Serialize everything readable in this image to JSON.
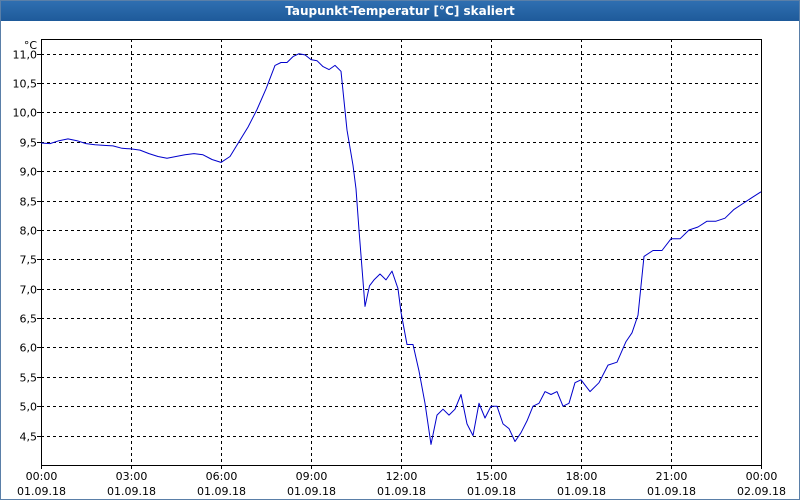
{
  "window": {
    "title": "Taupunkt-Temperatur [°C] skaliert"
  },
  "chart_data": {
    "type": "line",
    "title": "Taupunkt-Temperatur [°C] skaliert",
    "ylabel": "°C",
    "xlabel": "",
    "ylim": [
      4.0,
      11.25
    ],
    "xlim_hours": [
      0,
      24
    ],
    "grid": true,
    "y_ticks": [
      {
        "value": 4.5,
        "label": "4,5"
      },
      {
        "value": 5.0,
        "label": "5,0"
      },
      {
        "value": 5.5,
        "label": "5,5"
      },
      {
        "value": 6.0,
        "label": "6,0"
      },
      {
        "value": 6.5,
        "label": "6,5"
      },
      {
        "value": 7.0,
        "label": "7,0"
      },
      {
        "value": 7.5,
        "label": "7,5"
      },
      {
        "value": 8.0,
        "label": "8,0"
      },
      {
        "value": 8.5,
        "label": "8,5"
      },
      {
        "value": 9.0,
        "label": "9,0"
      },
      {
        "value": 9.5,
        "label": "9,5"
      },
      {
        "value": 10.0,
        "label": "10,0"
      },
      {
        "value": 10.5,
        "label": "10,5"
      },
      {
        "value": 11.0,
        "label": "11,0"
      }
    ],
    "x_ticks": [
      {
        "hour": 0,
        "time": "00:00",
        "date": "01.09.18"
      },
      {
        "hour": 3,
        "time": "03:00",
        "date": "01.09.18"
      },
      {
        "hour": 6,
        "time": "06:00",
        "date": "01.09.18"
      },
      {
        "hour": 9,
        "time": "09:00",
        "date": "01.09.18"
      },
      {
        "hour": 12,
        "time": "12:00",
        "date": "01.09.18"
      },
      {
        "hour": 15,
        "time": "15:00",
        "date": "01.09.18"
      },
      {
        "hour": 18,
        "time": "18:00",
        "date": "01.09.18"
      },
      {
        "hour": 21,
        "time": "21:00",
        "date": "01.09.18"
      },
      {
        "hour": 24,
        "time": "00:00",
        "date": "02.09.18"
      }
    ],
    "series": [
      {
        "color": "#0000cc",
        "x_hours": [
          0,
          0.3,
          0.6,
          0.9,
          1.2,
          1.5,
          1.8,
          2.1,
          2.4,
          2.7,
          3.0,
          3.3,
          3.6,
          3.9,
          4.2,
          4.5,
          4.8,
          5.1,
          5.4,
          5.7,
          6.0,
          6.3,
          6.6,
          6.9,
          7.2,
          7.5,
          7.8,
          8.0,
          8.2,
          8.4,
          8.6,
          8.8,
          9.0,
          9.2,
          9.4,
          9.6,
          9.8,
          10.0,
          10.2,
          10.4,
          10.5,
          10.6,
          10.8,
          10.95,
          11.1,
          11.3,
          11.5,
          11.7,
          11.9,
          12.0,
          12.2,
          12.4,
          12.6,
          12.8,
          13.0,
          13.2,
          13.4,
          13.6,
          13.8,
          14.0,
          14.2,
          14.4,
          14.6,
          14.8,
          15.0,
          15.2,
          15.4,
          15.6,
          15.8,
          16.0,
          16.2,
          16.4,
          16.6,
          16.8,
          17.0,
          17.2,
          17.4,
          17.6,
          17.8,
          18.0,
          18.3,
          18.6,
          18.9,
          19.2,
          19.5,
          19.7,
          19.9,
          20.1,
          20.4,
          20.7,
          21.0,
          21.3,
          21.6,
          21.9,
          22.2,
          22.5,
          22.8,
          23.1,
          23.4,
          23.7,
          24.0
        ],
        "values": [
          9.48,
          9.47,
          9.52,
          9.55,
          9.52,
          9.47,
          9.45,
          9.44,
          9.43,
          9.39,
          9.38,
          9.36,
          9.3,
          9.25,
          9.22,
          9.25,
          9.28,
          9.3,
          9.28,
          9.2,
          9.15,
          9.25,
          9.5,
          9.75,
          10.05,
          10.4,
          10.8,
          10.85,
          10.85,
          10.95,
          11.0,
          10.98,
          10.9,
          10.88,
          10.78,
          10.73,
          10.8,
          10.7,
          9.7,
          9.1,
          8.7,
          8.0,
          6.7,
          7.05,
          7.15,
          7.25,
          7.15,
          7.3,
          7.0,
          6.6,
          6.05,
          6.05,
          5.6,
          5.05,
          4.35,
          4.85,
          4.95,
          4.85,
          4.95,
          5.2,
          4.7,
          4.5,
          5.05,
          4.8,
          5.0,
          5.0,
          4.7,
          4.62,
          4.4,
          4.55,
          4.75,
          5.0,
          5.05,
          5.25,
          5.2,
          5.25,
          5.0,
          5.05,
          5.4,
          5.45,
          5.25,
          5.4,
          5.7,
          5.75,
          6.1,
          6.25,
          6.55,
          7.55,
          7.65,
          7.65,
          7.85,
          7.85,
          8.0,
          8.05,
          8.15,
          8.15,
          8.2,
          8.35,
          8.45,
          8.55,
          8.65
        ]
      }
    ]
  }
}
